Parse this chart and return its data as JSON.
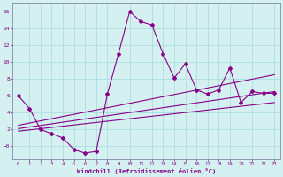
{
  "xlabel": "Windchill (Refroidissement éolien,°C)",
  "background_color": "#d4f0f0",
  "grid_color": "#aadddd",
  "line_color": "#880088",
  "x_data": [
    0,
    1,
    2,
    3,
    4,
    5,
    6,
    7,
    8,
    9,
    10,
    11,
    12,
    13,
    14,
    15,
    16,
    17,
    18,
    19,
    20,
    21,
    22,
    23
  ],
  "y_main": [
    6,
    4.5,
    2,
    1.5,
    1.0,
    -0.4,
    -0.8,
    -0.6,
    6.2,
    11.0,
    16.0,
    14.8,
    14.4,
    11.0,
    8.1,
    9.8,
    6.7,
    6.2,
    6.7,
    9.3,
    5.2,
    6.5,
    6.3,
    6.3
  ],
  "trend_lines": [
    {
      "x0": 0,
      "y0": 1.8,
      "x1": 23,
      "y1": 5.2
    },
    {
      "x0": 0,
      "y0": 2.1,
      "x1": 23,
      "y1": 6.5
    },
    {
      "x0": 0,
      "y0": 2.5,
      "x1": 23,
      "y1": 8.5
    }
  ],
  "xlim": [
    -0.5,
    23.5
  ],
  "ylim": [
    -1.5,
    17.0
  ],
  "xticks": [
    0,
    1,
    2,
    3,
    4,
    5,
    6,
    7,
    8,
    9,
    10,
    11,
    12,
    13,
    14,
    15,
    16,
    17,
    18,
    19,
    20,
    21,
    22,
    23
  ],
  "yticks": [
    0,
    2,
    4,
    6,
    8,
    10,
    12,
    14,
    16
  ],
  "ytick_labels": [
    "−0",
    "2",
    "4",
    "6",
    "8",
    "10",
    "12",
    "14",
    "16"
  ]
}
